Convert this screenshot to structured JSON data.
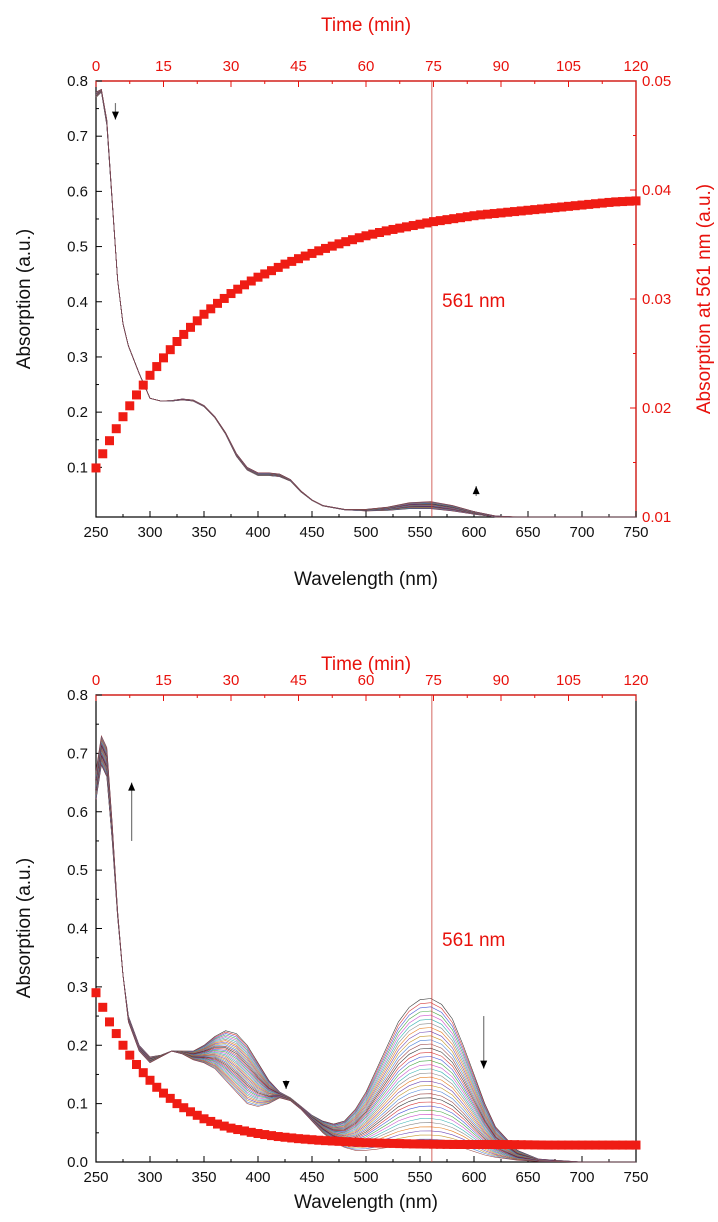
{
  "chart_data": [
    {
      "type": "line",
      "xlabel": "Wavelength (nm)",
      "ylabel": "Absorption (a.u.)",
      "x_ticks": [
        "250",
        "300",
        "350",
        "400",
        "450",
        "500",
        "550",
        "600",
        "650",
        "700",
        "750"
      ],
      "y_ticks": [
        "0.1",
        "0.2",
        "0.3",
        "0.4",
        "0.5",
        "0.6",
        "0.7",
        "0.8"
      ],
      "xlim": [
        250,
        750
      ],
      "ylim": [
        0.01,
        0.8
      ],
      "top_axis": {
        "label": "Time (min)",
        "ticks": [
          "0",
          "15",
          "30",
          "45",
          "60",
          "75",
          "90",
          "105",
          "120"
        ],
        "lim": [
          0,
          120
        ]
      },
      "right_axis": {
        "label": "Absorption at 561 nm (a.u.)",
        "ticks": [
          "0.01",
          "0.02",
          "0.03",
          "0.04",
          "0.05"
        ],
        "lim": [
          0.01,
          0.05
        ]
      },
      "marker_line": {
        "wavelength": 561,
        "label": "561 nm",
        "time": 75
      },
      "spectra": {
        "count": 36,
        "wavelength": [
          250,
          255,
          260,
          265,
          270,
          275,
          280,
          290,
          300,
          310,
          320,
          330,
          340,
          350,
          360,
          370,
          380,
          390,
          400,
          410,
          420,
          430,
          440,
          450,
          460,
          480,
          500,
          520,
          540,
          560,
          580,
          600,
          620,
          640,
          660,
          700,
          750
        ],
        "first": [
          0.77,
          0.78,
          0.72,
          0.58,
          0.44,
          0.36,
          0.32,
          0.27,
          0.225,
          0.22,
          0.22,
          0.222,
          0.22,
          0.21,
          0.19,
          0.16,
          0.12,
          0.095,
          0.085,
          0.085,
          0.083,
          0.075,
          0.055,
          0.04,
          0.03,
          0.023,
          0.021,
          0.022,
          0.025,
          0.025,
          0.021,
          0.015,
          0.01,
          0.006,
          0.004,
          0.002,
          0.001
        ],
        "last": [
          0.78,
          0.785,
          0.73,
          0.585,
          0.44,
          0.36,
          0.32,
          0.27,
          0.225,
          0.22,
          0.221,
          0.224,
          0.222,
          0.212,
          0.192,
          0.163,
          0.125,
          0.1,
          0.09,
          0.09,
          0.088,
          0.078,
          0.057,
          0.041,
          0.031,
          0.024,
          0.024,
          0.028,
          0.036,
          0.038,
          0.031,
          0.02,
          0.012,
          0.007,
          0.004,
          0.002,
          0.001
        ]
      },
      "kinetics": {
        "label": "Absorption at 561 nm",
        "time": [
          0,
          1.5,
          3,
          4.5,
          6,
          7.5,
          9,
          10.5,
          12,
          13.5,
          15,
          18,
          21,
          24,
          27,
          30,
          33,
          36,
          39,
          42,
          45,
          50,
          55,
          60,
          65,
          70,
          75,
          80,
          85,
          90,
          95,
          100,
          105,
          110,
          115,
          120
        ],
        "values": [
          0.0145,
          0.0158,
          0.017,
          0.0181,
          0.0192,
          0.0202,
          0.0212,
          0.0221,
          0.023,
          0.0238,
          0.0246,
          0.0261,
          0.0274,
          0.0286,
          0.0296,
          0.0305,
          0.0313,
          0.032,
          0.0326,
          0.0332,
          0.0337,
          0.0345,
          0.0352,
          0.0358,
          0.0363,
          0.0367,
          0.0371,
          0.0374,
          0.0377,
          0.0379,
          0.0381,
          0.0383,
          0.0385,
          0.0387,
          0.0389,
          0.039
        ]
      },
      "arrows": [
        {
          "direction": "down",
          "wavelength": 268,
          "from": 0.76,
          "to": 0.73
        },
        {
          "direction": "up",
          "wavelength": 602,
          "from": 0.048,
          "to": 0.066
        }
      ]
    },
    {
      "type": "line",
      "xlabel": "Wavelength (nm)",
      "ylabel": "Absorption (a.u.)",
      "x_ticks": [
        "250",
        "300",
        "350",
        "400",
        "450",
        "500",
        "550",
        "600",
        "650",
        "700",
        "750"
      ],
      "y_ticks": [
        "0.0",
        "0.1",
        "0.2",
        "0.3",
        "0.4",
        "0.5",
        "0.6",
        "0.7",
        "0.8"
      ],
      "xlim": [
        250,
        750
      ],
      "ylim": [
        0,
        0.8
      ],
      "top_axis": {
        "label": "Time (min)",
        "ticks": [
          "0",
          "15",
          "30",
          "45",
          "60",
          "75",
          "90",
          "105",
          "120"
        ],
        "lim": [
          0,
          120
        ]
      },
      "marker_line": {
        "wavelength": 561,
        "label": "561 nm",
        "time": 75
      },
      "spectra": {
        "count": 36,
        "wavelength": [
          250,
          255,
          260,
          265,
          270,
          275,
          280,
          290,
          300,
          310,
          320,
          330,
          340,
          350,
          360,
          370,
          380,
          390,
          400,
          410,
          420,
          430,
          440,
          450,
          460,
          470,
          480,
          490,
          500,
          510,
          520,
          530,
          540,
          550,
          560,
          570,
          580,
          590,
          600,
          610,
          620,
          640,
          660,
          700,
          750
        ],
        "first": [
          0.62,
          0.68,
          0.66,
          0.55,
          0.42,
          0.32,
          0.25,
          0.2,
          0.18,
          0.183,
          0.19,
          0.19,
          0.19,
          0.2,
          0.215,
          0.225,
          0.22,
          0.2,
          0.17,
          0.14,
          0.12,
          0.11,
          0.095,
          0.08,
          0.07,
          0.065,
          0.07,
          0.09,
          0.12,
          0.16,
          0.2,
          0.24,
          0.265,
          0.278,
          0.28,
          0.27,
          0.245,
          0.2,
          0.15,
          0.1,
          0.06,
          0.02,
          0.005,
          0.0,
          0.0
        ],
        "last": [
          0.67,
          0.73,
          0.71,
          0.58,
          0.43,
          0.32,
          0.24,
          0.19,
          0.17,
          0.18,
          0.19,
          0.185,
          0.175,
          0.17,
          0.16,
          0.14,
          0.12,
          0.1,
          0.095,
          0.1,
          0.11,
          0.105,
          0.09,
          0.07,
          0.05,
          0.035,
          0.025,
          0.02,
          0.02,
          0.022,
          0.025,
          0.028,
          0.03,
          0.032,
          0.032,
          0.031,
          0.028,
          0.024,
          0.018,
          0.012,
          0.008,
          0.003,
          0.001,
          0.0,
          0.0
        ]
      },
      "kinetics": {
        "label": "Absorption at 561 nm",
        "time": [
          0,
          1.5,
          3,
          4.5,
          6,
          7.5,
          9,
          10.5,
          12,
          13.5,
          15,
          18,
          21,
          24,
          27,
          30,
          35,
          40,
          45,
          50,
          55,
          60,
          70,
          80,
          90,
          100,
          110,
          120
        ],
        "values": [
          0.29,
          0.265,
          0.24,
          0.22,
          0.2,
          0.183,
          0.167,
          0.153,
          0.14,
          0.128,
          0.118,
          0.1,
          0.086,
          0.074,
          0.065,
          0.058,
          0.05,
          0.044,
          0.04,
          0.037,
          0.035,
          0.033,
          0.031,
          0.03,
          0.03,
          0.029,
          0.029,
          0.029
        ]
      },
      "arrows": [
        {
          "direction": "up",
          "wavelength": 283,
          "from": 0.55,
          "to": 0.65
        },
        {
          "direction": "down",
          "wavelength": 426,
          "from": 0.14,
          "to": 0.125
        },
        {
          "direction": "down",
          "wavelength": 609,
          "from": 0.25,
          "to": 0.16
        }
      ]
    }
  ]
}
